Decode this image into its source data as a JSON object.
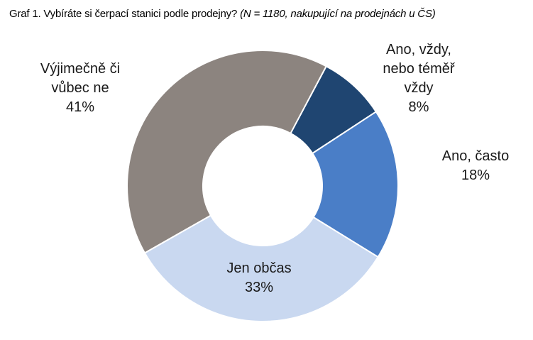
{
  "title": {
    "main": "Graf 1. Vybíráte si čerpací stanici podle prodejny?",
    "note": "(N = 1180, nakupující na prodejnách u ČS)"
  },
  "chart_data": {
    "type": "pie",
    "donut": true,
    "title": "Graf 1. Vybíráte si čerpací stanici podle prodejny?",
    "subtitle": "(N = 1180, nakupující na prodejnách u ČS)",
    "categories": [
      "Ano, vždy, nebo téměř vždy",
      "Ano, často",
      "Jen občas",
      "Výjimečně či vůbec ne"
    ],
    "values": [
      8,
      18,
      33,
      41
    ],
    "unit": "%",
    "colors": [
      "#1f4571",
      "#4a7ec7",
      "#c9d8f0",
      "#8c847f"
    ],
    "separator_color": "#ffffff",
    "start_angle_deg": 28,
    "inner_radius_ratio": 0.44,
    "legend": "none",
    "label_style": "category-and-percent"
  },
  "labels": [
    {
      "name": "vyjimecne-ci-vubec-ne",
      "text": "Výjimečně či\nvůbec ne\n41%"
    },
    {
      "name": "ano-vzdy-nebo-temer-vzdy",
      "text": "Ano, vždy,\nnebo téměř\nvždy\n8%"
    },
    {
      "name": "ano-casto",
      "text": "Ano, často\n18%"
    },
    {
      "name": "jen-obcas",
      "text": "Jen občas\n33%"
    }
  ]
}
